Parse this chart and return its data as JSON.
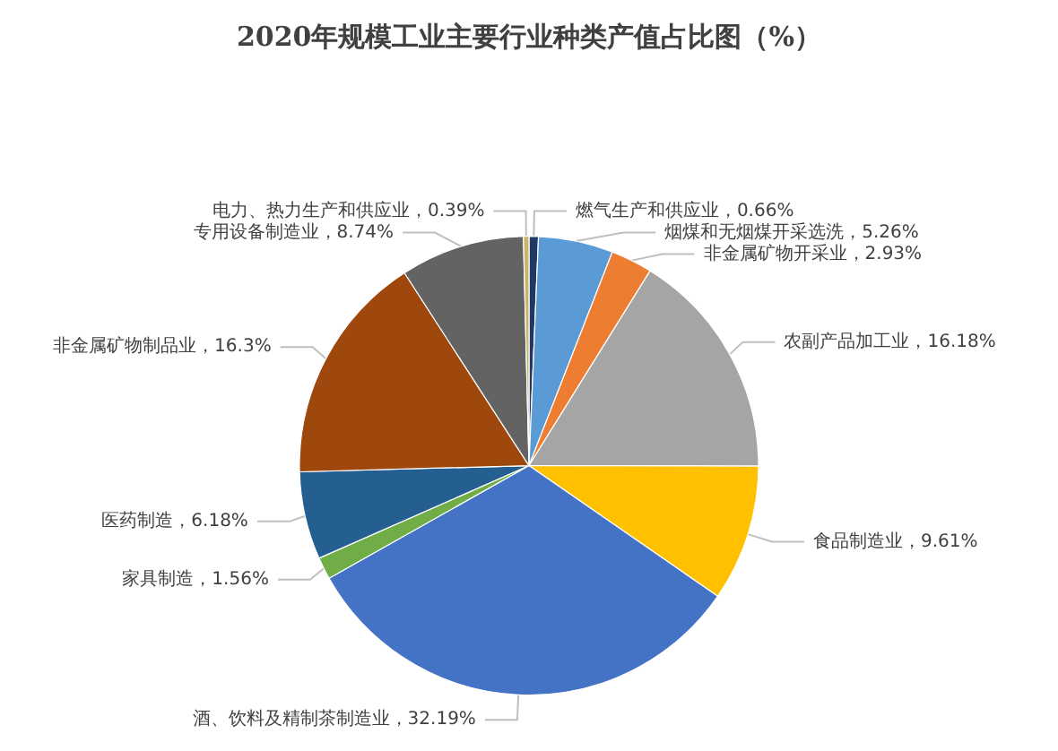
{
  "chart_data": {
    "type": "pie",
    "title": "2020年规模工业主要行业种类产值占比图（%）",
    "categories": [
      "燃气生产和供应业",
      "烟煤和无烟煤开采选洗",
      "非金属矿物开采业",
      "农副产品加工业",
      "食品制造业",
      "酒、饮料及精制茶制造业",
      "家具制造",
      "医药制造",
      "非金属矿物制品业",
      "专用设备制造业",
      "电力、热力生产和供应业"
    ],
    "values": [
      0.66,
      5.26,
      2.93,
      16.18,
      9.61,
      32.19,
      1.56,
      6.18,
      16.3,
      8.74,
      0.39
    ],
    "value_labels": [
      "0.66%",
      "5.26%",
      "2.93%",
      "16.18%",
      "9.61%",
      "32.19%",
      "1.56%",
      "6.18%",
      "16.3%",
      "8.74%",
      "0.39%"
    ],
    "colors": [
      "#1f3864",
      "#5b9bd5",
      "#ed7d31",
      "#a5a5a5",
      "#ffc000",
      "#4472c4",
      "#70ad47",
      "#255e91",
      "#9e480e",
      "#636363",
      "#c9b46a"
    ],
    "legend": false
  }
}
